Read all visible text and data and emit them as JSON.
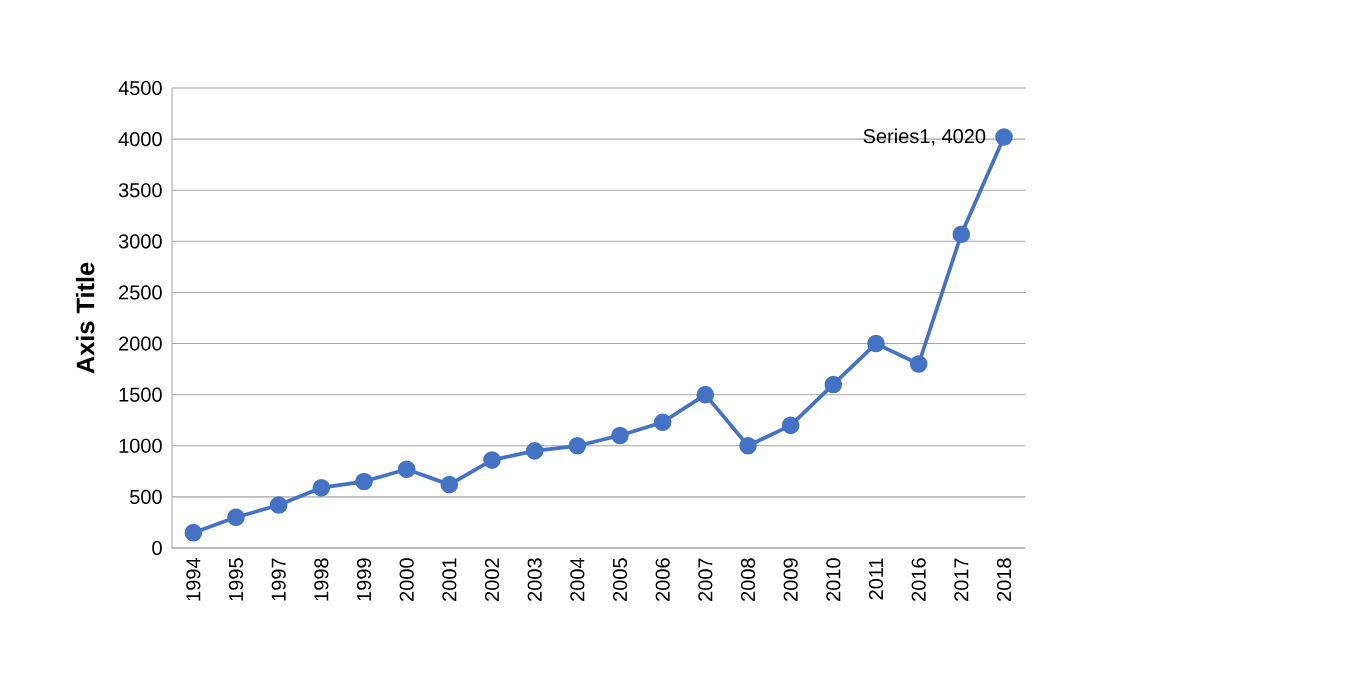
{
  "chart_data": {
    "type": "line",
    "ylabel": "Axis Title",
    "categories": [
      "1994",
      "1995",
      "1997",
      "1998",
      "1999",
      "2000",
      "2001",
      "2002",
      "2003",
      "2004",
      "2005",
      "2006",
      "2007",
      "2008",
      "2009",
      "2010",
      "2011",
      "2016",
      "2017",
      "2018"
    ],
    "series": [
      {
        "color": "#4472c4",
        "values": [
          150,
          300,
          420,
          590,
          650,
          770,
          620,
          860,
          950,
          1000,
          1100,
          1230,
          1500,
          1000,
          1200,
          1600,
          2000,
          1800,
          3070,
          4020
        ]
      }
    ],
    "ylim": [
      0,
      4500
    ],
    "yticks": [
      0,
      500,
      1000,
      1500,
      2000,
      2500,
      3000,
      3500,
      4000,
      4500
    ],
    "grid": "y",
    "marker": "circle",
    "line_style": "solid",
    "annotations": [
      {
        "text": "Series1, 4020",
        "x": "2018",
        "y": 4020
      }
    ]
  }
}
